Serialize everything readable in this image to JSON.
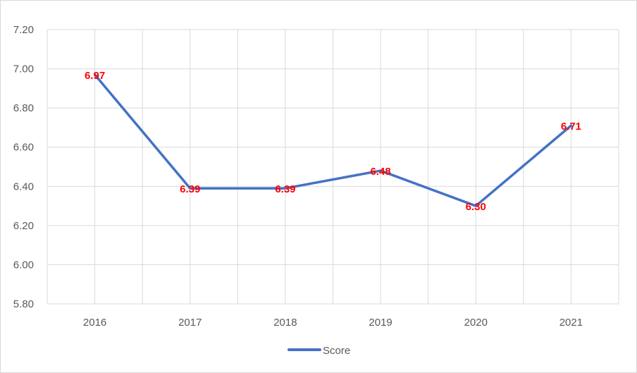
{
  "chart_data": {
    "type": "line",
    "title": "",
    "xlabel": "",
    "ylabel": "",
    "categories": [
      "2016",
      "2017",
      "2018",
      "2019",
      "2020",
      "2021"
    ],
    "series": [
      {
        "name": "Score",
        "values": [
          6.97,
          6.39,
          6.39,
          6.48,
          6.3,
          6.71
        ],
        "data_labels": [
          "6.97",
          "6.39",
          "6.39",
          "6.48",
          "6.30",
          "6.71"
        ],
        "color": "#4472c4"
      }
    ],
    "data_label_color": "#ff0000",
    "ylim": [
      5.8,
      7.2
    ],
    "yticks": [
      "5.80",
      "6.00",
      "6.20",
      "6.40",
      "6.60",
      "6.80",
      "7.00",
      "7.20"
    ],
    "grid": true,
    "gridline_color": "#d9d9d9",
    "legend": "bottom"
  }
}
